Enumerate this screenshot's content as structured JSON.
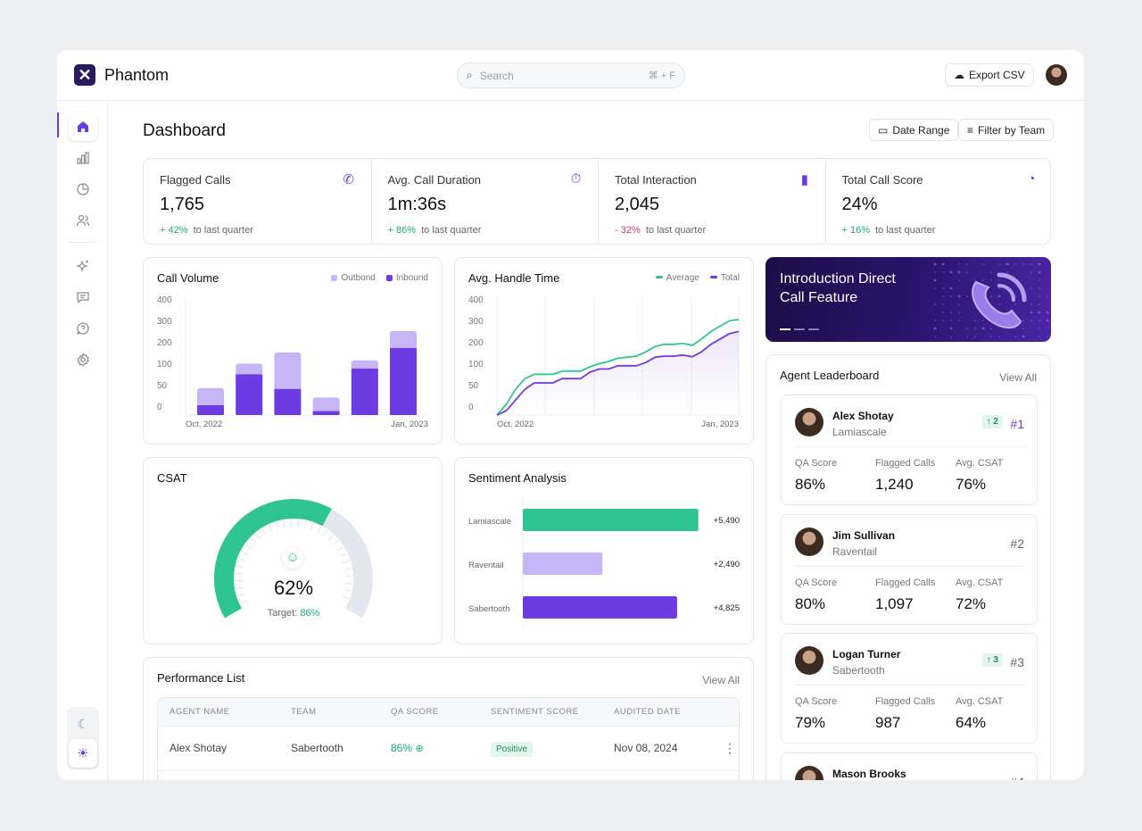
{
  "app": {
    "name": "Phantom"
  },
  "search": {
    "placeholder": "Search",
    "shortcut": "⌘ + F"
  },
  "header": {
    "export_label": "Export CSV"
  },
  "page": {
    "title": "Dashboard",
    "date_range": "Date Range",
    "filter": "Filter by Team"
  },
  "colors": {
    "accent": "#6d3be3",
    "light_accent": "#c7b5f5",
    "green": "#2fc592",
    "red": "#d23a5e"
  },
  "sidebar": {
    "items": [
      {
        "icon": "home-icon",
        "active": true
      },
      {
        "icon": "bar-chart-icon"
      },
      {
        "icon": "pie-chart-icon"
      },
      {
        "icon": "users-icon"
      },
      {
        "icon": "sparkles-icon"
      },
      {
        "icon": "chat-icon"
      },
      {
        "icon": "help-chat-icon"
      },
      {
        "icon": "settings-icon"
      }
    ],
    "theme": [
      {
        "icon": "moon-icon"
      },
      {
        "icon": "sun-icon",
        "active": true
      }
    ]
  },
  "stats": [
    {
      "label": "Flagged Calls",
      "value": "1,765",
      "delta": "+ 42%",
      "dir": "up",
      "suffix": "to last quarter",
      "icon": "phone-icon"
    },
    {
      "label": "Avg. Call Duration",
      "value": "1m:36s",
      "delta": "+ 86%",
      "dir": "up",
      "suffix": "to last quarter",
      "icon": "stopwatch-icon"
    },
    {
      "label": "Total Interaction",
      "value": "2,045",
      "delta": "- 32%",
      "dir": "down",
      "suffix": "to last quarter",
      "icon": "bars-icon"
    },
    {
      "label": "Total Call Score",
      "value": "24%",
      "delta": "+ 16%",
      "dir": "up",
      "suffix": "to last quarter",
      "icon": "gauge-icon"
    }
  ],
  "chart_data": [
    {
      "type": "bar",
      "title": "Call Volume",
      "stacked": true,
      "yticks": [
        0,
        50,
        100,
        200,
        300,
        400
      ],
      "ylim": [
        0,
        400
      ],
      "xtick_labels": [
        "Oct, 2022",
        "Jan, 2023"
      ],
      "series": [
        {
          "name": "Inbound",
          "color": "#6d3be3",
          "values": [
            23,
            95,
            61,
            9,
            117,
            213
          ]
        },
        {
          "name": "Outbond",
          "color": "#c7b5f5",
          "values": [
            40,
            45,
            131,
            32,
            38,
            79
          ]
        }
      ]
    },
    {
      "type": "line",
      "title": "Avg. Handle Time",
      "yticks": [
        0,
        50,
        100,
        200,
        300,
        400
      ],
      "ylim": [
        0,
        400
      ],
      "xtick_labels": [
        "Oct, 2022",
        "Jan, 2023"
      ],
      "series": [
        {
          "name": "Average",
          "color": "#2fc592",
          "values": [
            0,
            25,
            60,
            85,
            95,
            95,
            95,
            105,
            105,
            105,
            125,
            140,
            150,
            165,
            170,
            175,
            195,
            220,
            230,
            230,
            235,
            225,
            255,
            290,
            315,
            340,
            346
          ]
        },
        {
          "name": "Total",
          "color": "#6d3be3",
          "values": [
            0,
            10,
            35,
            60,
            75,
            75,
            75,
            85,
            85,
            85,
            100,
            115,
            115,
            130,
            130,
            130,
            145,
            170,
            175,
            175,
            180,
            172,
            195,
            230,
            255,
            280,
            290
          ]
        }
      ]
    },
    {
      "type": "gauge",
      "title": "CSAT",
      "value": 62,
      "value_label": "62%",
      "target_label": "Target:",
      "target": "86%"
    },
    {
      "type": "bar",
      "orientation": "horizontal",
      "title": "Sentiment Analysis",
      "categories": [
        "Lamiascale",
        "Raventail",
        "Sabertooth"
      ],
      "values": [
        5490,
        2490,
        4825
      ],
      "labels": [
        "+5,490",
        "+2,490",
        "+4,825"
      ],
      "colors": [
        "#2fc592",
        "#c7b5f5",
        "#6d3be3"
      ]
    }
  ],
  "promo": {
    "line1": "Introduction Direct",
    "line2": "Call Feature"
  },
  "leaderboard": {
    "title": "Agent Leaderboard",
    "view_all": "View All",
    "metric_labels": [
      "QA Score",
      "Flagged Calls",
      "Avg. CSAT"
    ],
    "agents": [
      {
        "name": "Alex Shotay",
        "team": "Lamiascale",
        "rank": "#1",
        "move": "↑ 2",
        "qa": "86%",
        "flagged": "1,240",
        "csat": "76%"
      },
      {
        "name": "Jim Sullivan",
        "team": "Raventail",
        "rank": "#2",
        "move": "",
        "qa": "80%",
        "flagged": "1,097",
        "csat": "72%"
      },
      {
        "name": "Logan Turner",
        "team": "Sabertooth",
        "rank": "#3",
        "move": "↑ 3",
        "qa": "79%",
        "flagged": "987",
        "csat": "64%"
      },
      {
        "name": "Mason Brooks",
        "team": "",
        "rank": "#4",
        "move": ""
      }
    ]
  },
  "performance": {
    "title": "Performance List",
    "view_all": "View All",
    "columns": [
      "AGENT NAME",
      "TEAM",
      "QA SCORE",
      "SENTIMENT SCORE",
      "AUDITED DATE"
    ],
    "rows": [
      {
        "name": "Alex Shotay",
        "team": "Sabertooth",
        "qa": "86%",
        "sentiment": "Positive",
        "date": "Nov 08, 2024"
      }
    ]
  }
}
